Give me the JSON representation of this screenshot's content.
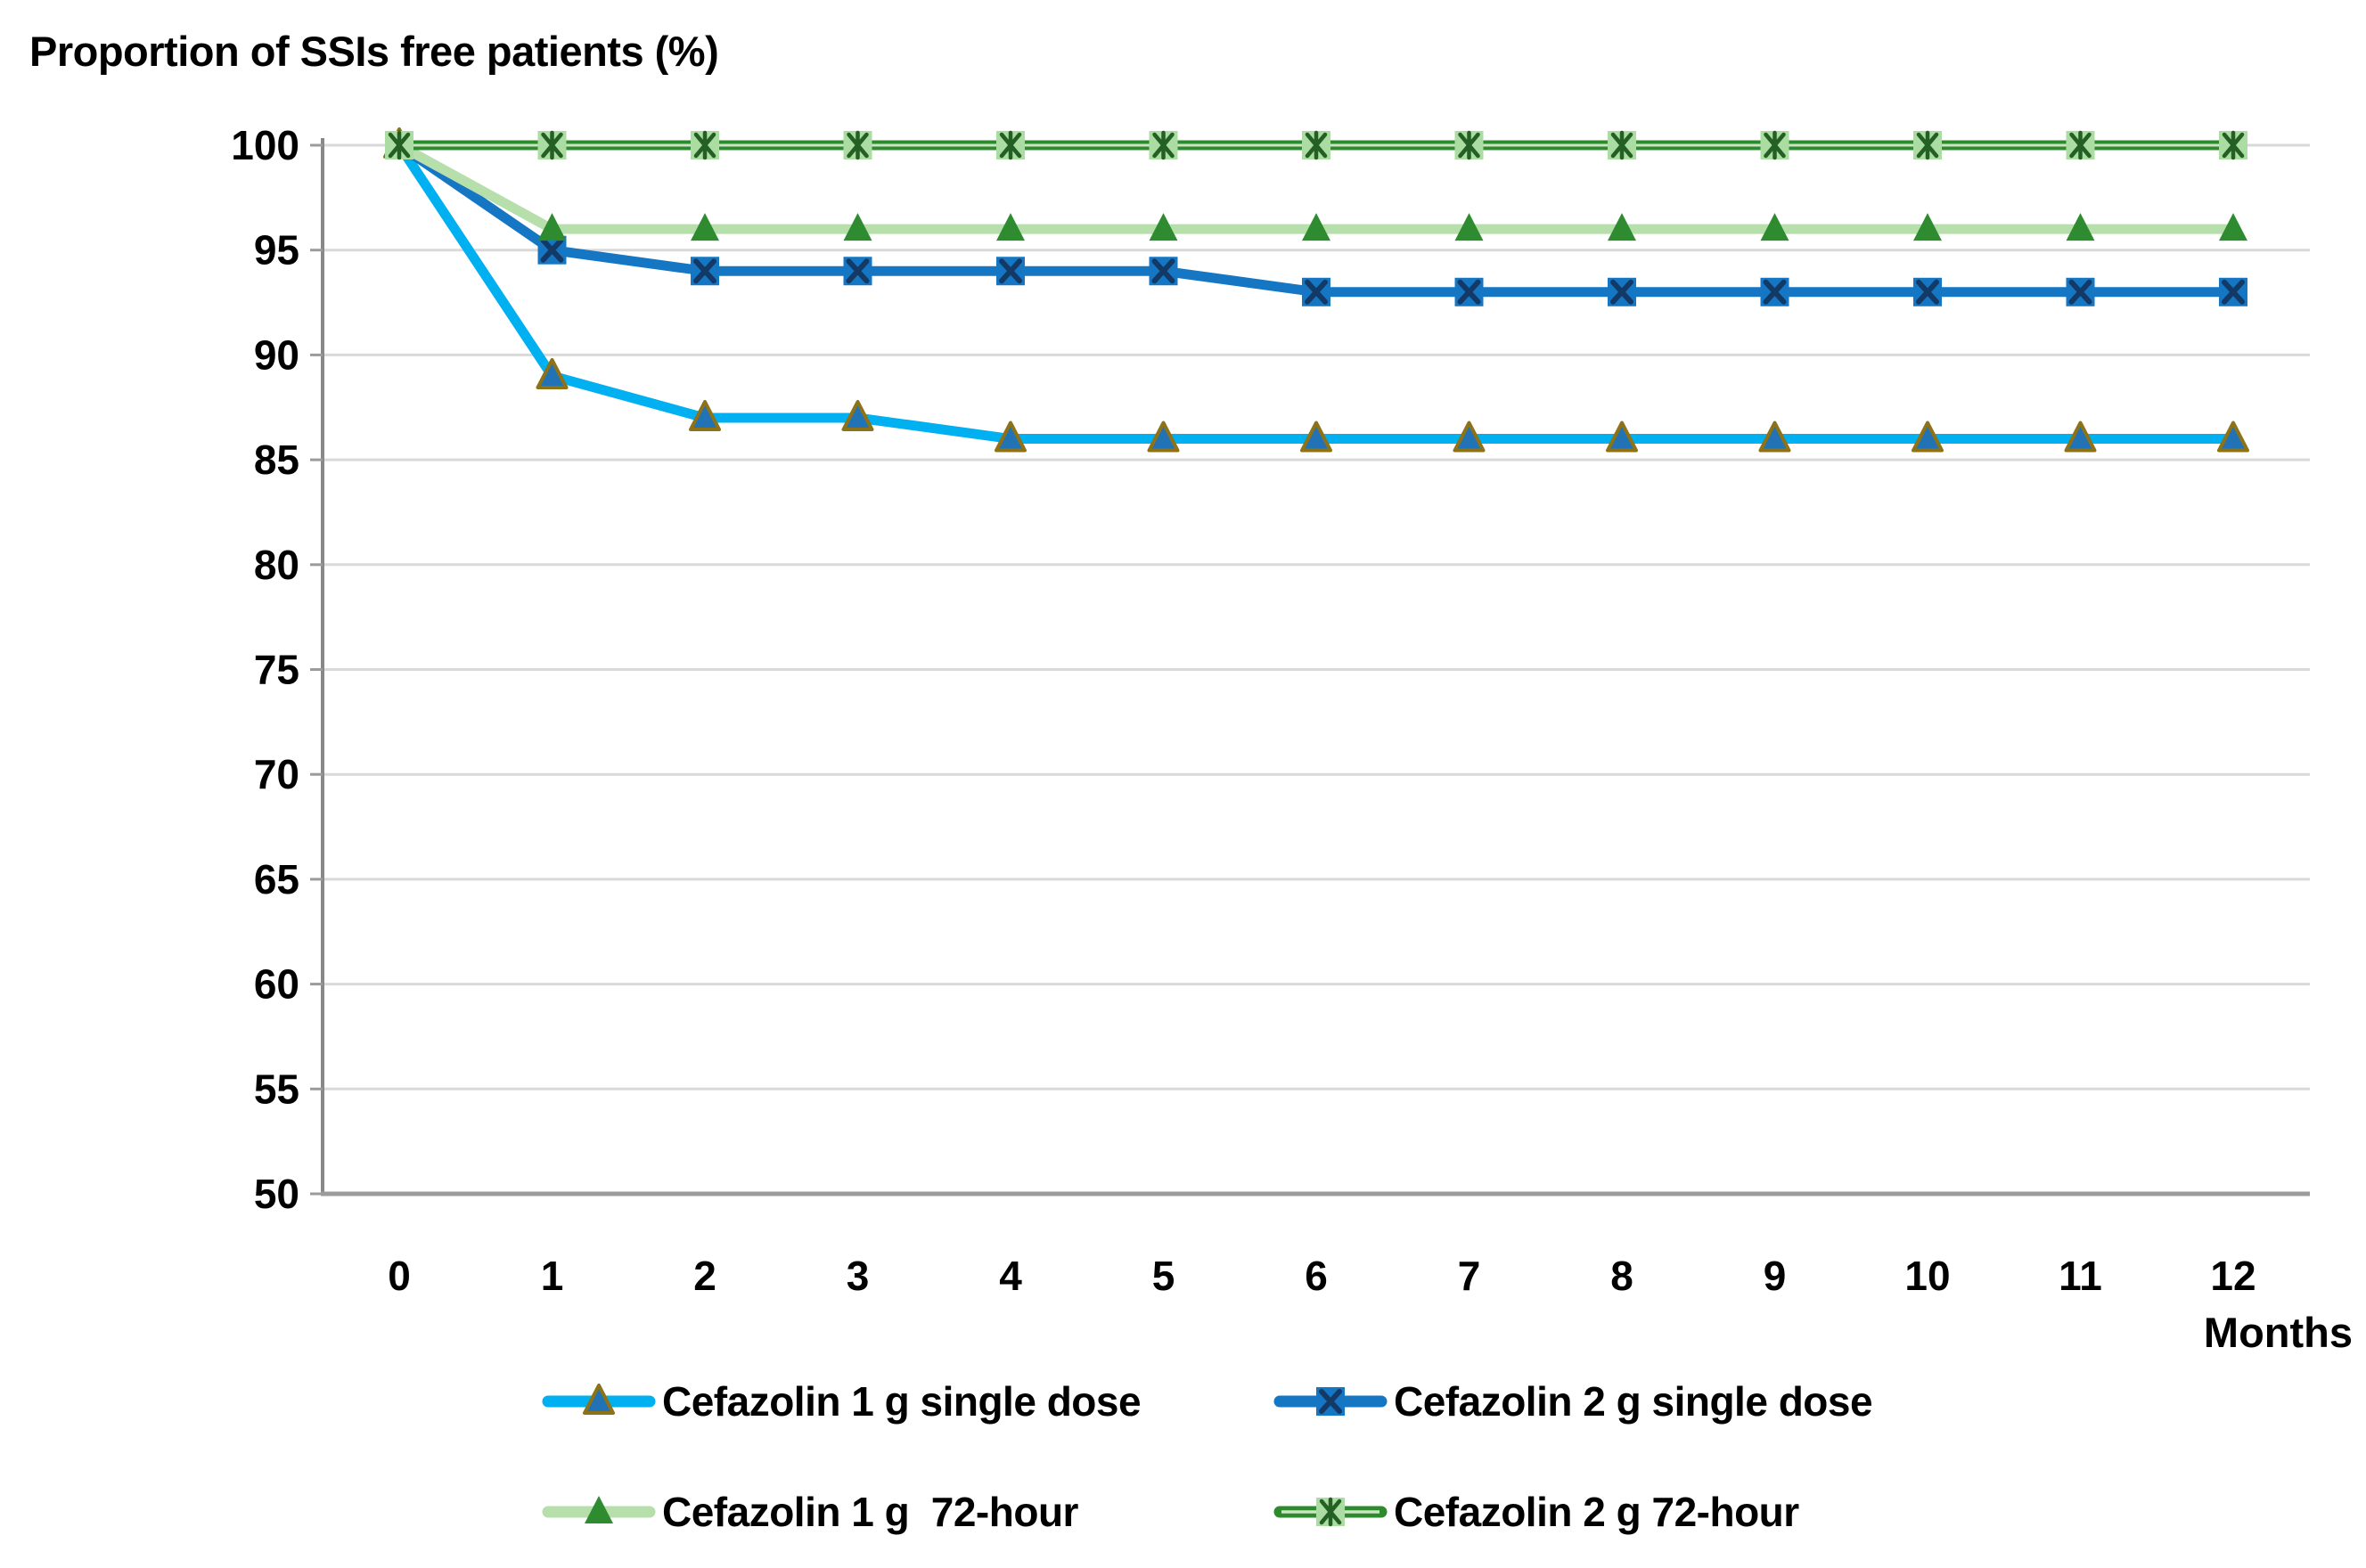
{
  "title": "Proportion of SSIs free patients (%)",
  "x_axis_label": "Months",
  "colors": {
    "background": "#FFFFFF",
    "grid": "#D9D9D9",
    "axis": "#9B9B9B",
    "text": "#000000"
  },
  "chart_data": {
    "type": "line",
    "title": "Proportion of SSIs free patients (%)",
    "xlabel": "Months",
    "ylabel": "Proportion of SSIs free patients (%)",
    "x": [
      0,
      1,
      2,
      3,
      4,
      5,
      6,
      7,
      8,
      9,
      10,
      11,
      12
    ],
    "xticks": [
      0,
      1,
      2,
      3,
      4,
      5,
      6,
      7,
      8,
      9,
      10,
      11,
      12
    ],
    "ylim": [
      50,
      100
    ],
    "yticks": [
      50,
      55,
      60,
      65,
      70,
      75,
      80,
      85,
      90,
      95,
      100
    ],
    "grid": true,
    "legend_position": "bottom",
    "series": [
      {
        "name": "Cefazolin 1 g single dose",
        "values": [
          100,
          89,
          87,
          87,
          86,
          86,
          86,
          86,
          86,
          86,
          86,
          86,
          86
        ],
        "line_color": "#00B0F0",
        "marker": "triangle",
        "marker_fill": "#2173B5",
        "marker_stroke": "#8E7217"
      },
      {
        "name": "Cefazolin 2 g single dose",
        "values": [
          100,
          95,
          94,
          94,
          94,
          94,
          93,
          93,
          93,
          93,
          93,
          93,
          93
        ],
        "line_color": "#1577C4",
        "marker": "x-square",
        "marker_fill": "#1577C4",
        "marker_stroke": "#133A66"
      },
      {
        "name": "Cefazolin 1 g  72-hour",
        "values": [
          100,
          96,
          96,
          96,
          96,
          96,
          96,
          96,
          96,
          96,
          96,
          96,
          96
        ],
        "line_color": "#B7DFAC",
        "marker": "triangle",
        "marker_fill": "#2E8B30",
        "marker_stroke": "none"
      },
      {
        "name": "Cefazolin 2 g 72-hour",
        "values": [
          100,
          100,
          100,
          100,
          100,
          100,
          100,
          100,
          100,
          100,
          100,
          100,
          100
        ],
        "line_color": "#2D8A2D",
        "line_core_color": "#C9E5C2",
        "marker": "asterisk-square",
        "marker_fill": "#ABDCA2",
        "marker_stroke": "#245F24"
      }
    ]
  }
}
